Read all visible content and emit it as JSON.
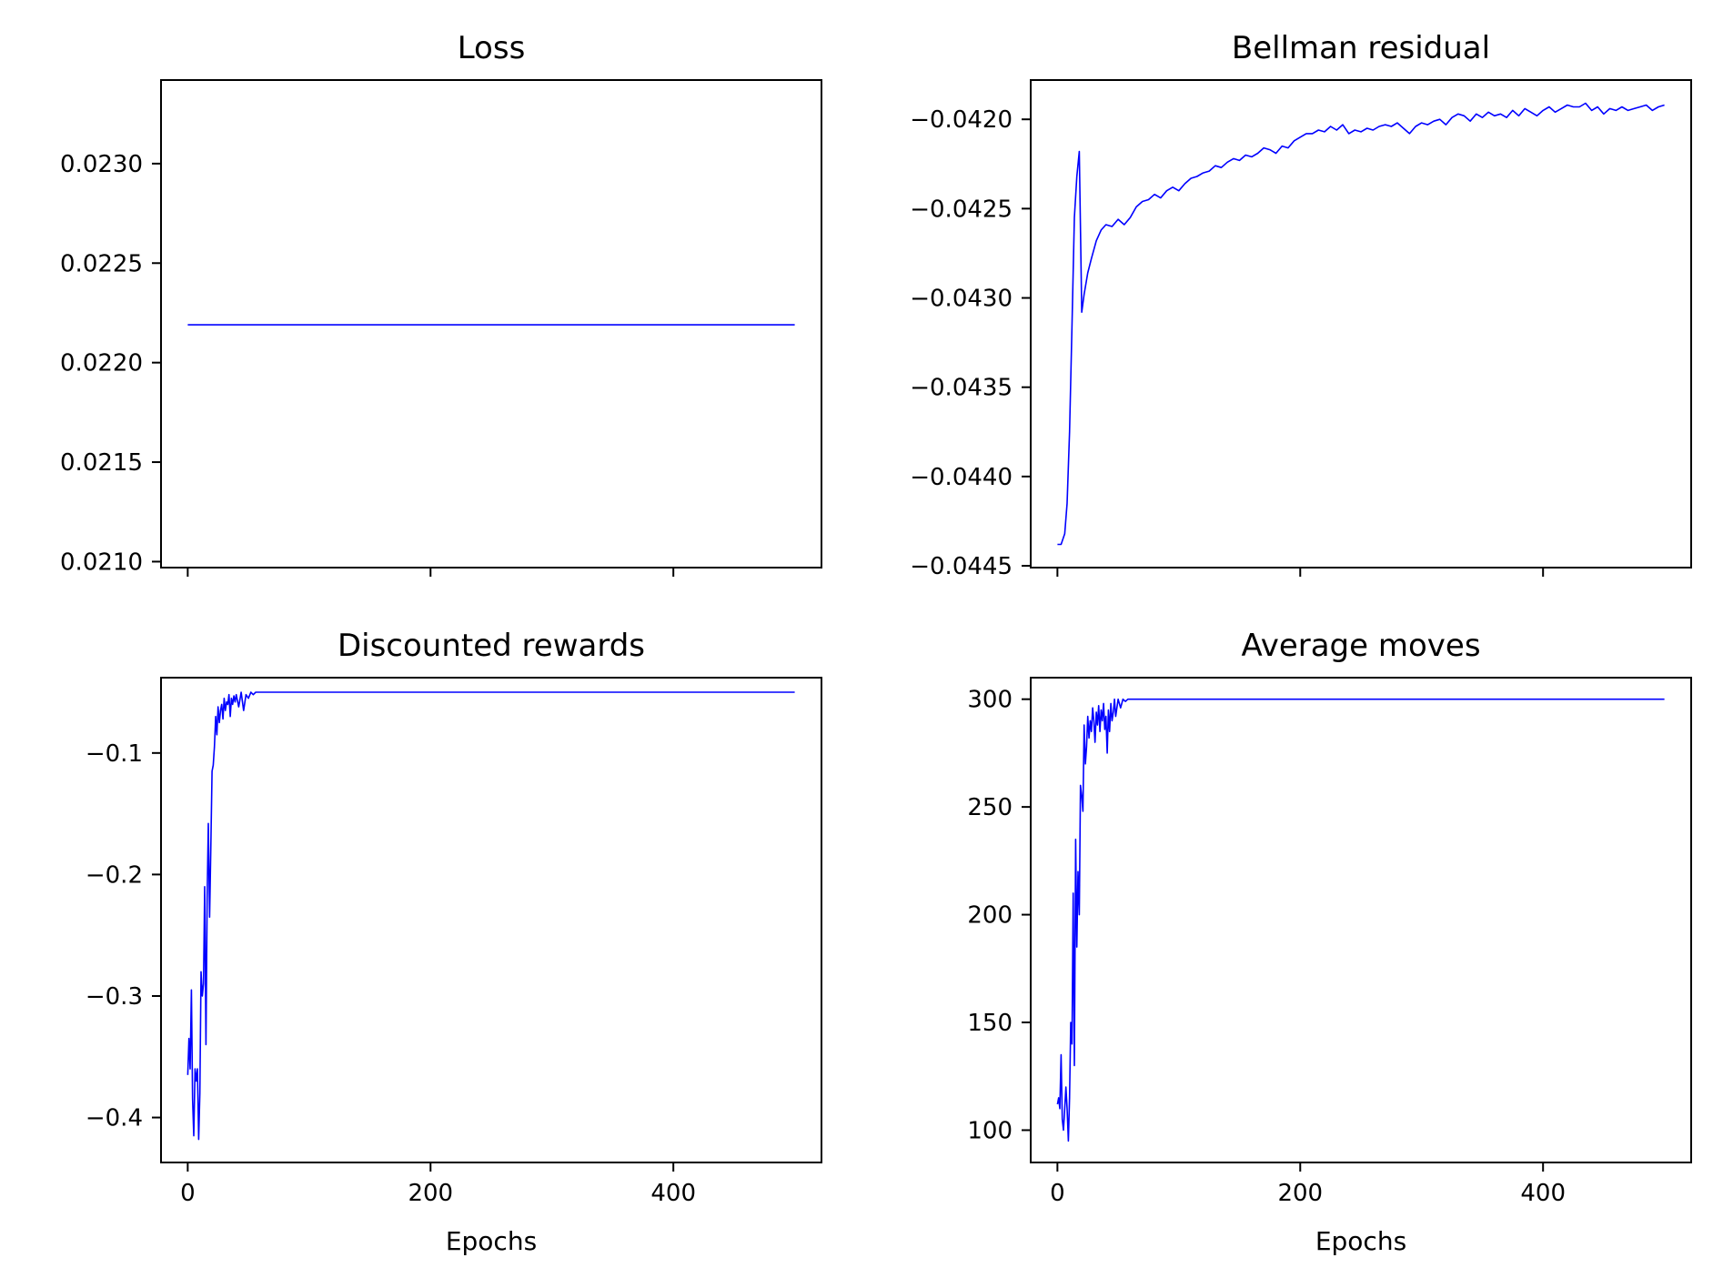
{
  "chart_data": [
    {
      "type": "line",
      "title": "Loss",
      "xlabel": "",
      "ylabel": "",
      "xlim": [
        -22,
        522
      ],
      "ylim": [
        0.02097,
        0.02342
      ],
      "xticks": [
        0,
        200,
        400
      ],
      "xtick_labels": [
        "",
        "",
        ""
      ],
      "yticks": [
        0.021,
        0.0215,
        0.022,
        0.0225,
        0.023
      ],
      "ytick_labels": [
        "0.0210",
        "0.0215",
        "0.0220",
        "0.0225",
        "0.0230"
      ],
      "color": "#0000ff",
      "series": [
        {
          "x": [
            0,
            500
          ],
          "y": [
            0.02219,
            0.02219
          ]
        }
      ]
    },
    {
      "type": "line",
      "title": "Bellman residual",
      "xlabel": "",
      "ylabel": "",
      "xlim": [
        -22,
        522
      ],
      "ylim": [
        -0.04451,
        -0.04178
      ],
      "xticks": [
        0,
        200,
        400
      ],
      "xtick_labels": [
        "",
        "",
        ""
      ],
      "yticks": [
        -0.0445,
        -0.044,
        -0.0435,
        -0.043,
        -0.0425,
        -0.042
      ],
      "ytick_labels": [
        "−0.0445",
        "−0.0440",
        "−0.0435",
        "−0.0430",
        "−0.0425",
        "−0.0420"
      ],
      "color": "#0000ff",
      "series": [
        {
          "x": [
            0,
            3,
            6,
            8,
            10,
            12,
            14,
            16,
            18,
            20,
            22,
            25,
            28,
            32,
            36,
            40,
            45,
            50,
            55,
            60,
            65,
            70,
            75,
            80,
            85,
            90,
            95,
            100,
            105,
            110,
            115,
            120,
            125,
            130,
            135,
            140,
            145,
            150,
            155,
            160,
            165,
            170,
            175,
            180,
            185,
            190,
            195,
            200,
            205,
            210,
            215,
            220,
            225,
            230,
            235,
            240,
            245,
            250,
            255,
            260,
            265,
            270,
            275,
            280,
            285,
            290,
            295,
            300,
            305,
            310,
            315,
            320,
            325,
            330,
            335,
            340,
            345,
            350,
            355,
            360,
            365,
            370,
            375,
            380,
            385,
            390,
            395,
            400,
            405,
            410,
            415,
            420,
            425,
            430,
            435,
            440,
            445,
            450,
            455,
            460,
            465,
            470,
            475,
            480,
            485,
            490,
            495,
            500
          ],
          "y": [
            -0.04438,
            -0.04438,
            -0.04432,
            -0.04415,
            -0.04375,
            -0.04315,
            -0.04255,
            -0.04232,
            -0.04218,
            -0.04308,
            -0.04298,
            -0.04286,
            -0.04278,
            -0.04268,
            -0.04262,
            -0.04259,
            -0.0426,
            -0.04256,
            -0.04259,
            -0.04255,
            -0.04249,
            -0.04246,
            -0.04245,
            -0.04242,
            -0.04244,
            -0.0424,
            -0.04238,
            -0.0424,
            -0.04236,
            -0.04233,
            -0.04232,
            -0.0423,
            -0.04229,
            -0.04226,
            -0.04227,
            -0.04224,
            -0.04222,
            -0.04223,
            -0.0422,
            -0.04221,
            -0.04219,
            -0.04216,
            -0.04217,
            -0.04219,
            -0.04215,
            -0.04216,
            -0.04212,
            -0.0421,
            -0.04208,
            -0.04208,
            -0.04206,
            -0.04207,
            -0.04204,
            -0.04206,
            -0.04203,
            -0.04208,
            -0.04206,
            -0.04207,
            -0.04205,
            -0.04206,
            -0.04204,
            -0.04203,
            -0.04204,
            -0.04202,
            -0.04205,
            -0.04208,
            -0.04204,
            -0.04202,
            -0.04203,
            -0.04201,
            -0.042,
            -0.04203,
            -0.04199,
            -0.04197,
            -0.04198,
            -0.04201,
            -0.04197,
            -0.04199,
            -0.04196,
            -0.04198,
            -0.04197,
            -0.04199,
            -0.04195,
            -0.04198,
            -0.04194,
            -0.04196,
            -0.04198,
            -0.04195,
            -0.04193,
            -0.04196,
            -0.04194,
            -0.04192,
            -0.04193,
            -0.04193,
            -0.04191,
            -0.04195,
            -0.04193,
            -0.04197,
            -0.04194,
            -0.04195,
            -0.04193,
            -0.04195,
            -0.04194,
            -0.04193,
            -0.04192,
            -0.04195,
            -0.04193,
            -0.04192
          ],
          "fix": {}
        }
      ]
    },
    {
      "type": "line",
      "title": "Discounted rewards",
      "xlabel": "Epochs",
      "ylabel": "",
      "xlim": [
        -22,
        522
      ],
      "ylim": [
        -0.437,
        -0.038
      ],
      "xticks": [
        0,
        200,
        400
      ],
      "xtick_labels": [
        "0",
        "200",
        "400"
      ],
      "yticks": [
        -0.4,
        -0.3,
        -0.2,
        -0.1
      ],
      "ytick_labels": [
        "−0.4",
        "−0.3",
        "−0.2",
        "−0.1"
      ],
      "color": "#0000ff",
      "series": [
        {
          "x": [
            0,
            1,
            2,
            3,
            4,
            5,
            6,
            7,
            8,
            9,
            10,
            11,
            12,
            13,
            14,
            15,
            16,
            17,
            18,
            19,
            20,
            21,
            22,
            23,
            24,
            25,
            26,
            27,
            28,
            29,
            30,
            31,
            32,
            33,
            34,
            35,
            36,
            37,
            38,
            39,
            40,
            42,
            44,
            46,
            48,
            50,
            52,
            54,
            56,
            58,
            60,
            500
          ],
          "y": [
            -0.365,
            -0.335,
            -0.36,
            -0.295,
            -0.385,
            -0.415,
            -0.36,
            -0.37,
            -0.36,
            -0.418,
            -0.38,
            -0.28,
            -0.3,
            -0.29,
            -0.21,
            -0.34,
            -0.22,
            -0.158,
            -0.235,
            -0.18,
            -0.115,
            -0.11,
            -0.095,
            -0.07,
            -0.085,
            -0.062,
            -0.075,
            -0.065,
            -0.06,
            -0.072,
            -0.055,
            -0.065,
            -0.058,
            -0.06,
            -0.052,
            -0.07,
            -0.055,
            -0.06,
            -0.053,
            -0.058,
            -0.052,
            -0.062,
            -0.05,
            -0.065,
            -0.052,
            -0.055,
            -0.05,
            -0.052,
            -0.05,
            -0.05,
            -0.05,
            -0.05
          ]
        }
      ]
    },
    {
      "type": "line",
      "title": "Average moves",
      "xlabel": "Epochs",
      "ylabel": "",
      "xlim": [
        -22,
        522
      ],
      "ylim": [
        85,
        310
      ],
      "xticks": [
        0,
        200,
        400
      ],
      "xtick_labels": [
        "0",
        "200",
        "400"
      ],
      "yticks": [
        100,
        150,
        200,
        250,
        300
      ],
      "ytick_labels": [
        "100",
        "150",
        "200",
        "250",
        "300"
      ],
      "color": "#0000ff",
      "series": [
        {
          "x": [
            0,
            1,
            2,
            3,
            4,
            5,
            6,
            7,
            8,
            9,
            10,
            11,
            12,
            13,
            14,
            15,
            16,
            17,
            18,
            19,
            20,
            21,
            22,
            23,
            24,
            25,
            26,
            27,
            28,
            29,
            30,
            31,
            32,
            33,
            34,
            35,
            36,
            37,
            38,
            39,
            40,
            41,
            42,
            43,
            44,
            45,
            46,
            47,
            48,
            50,
            52,
            54,
            56,
            58,
            60,
            500
          ],
          "y": [
            112,
            115,
            110,
            135,
            105,
            100,
            110,
            120,
            110,
            95,
            115,
            150,
            140,
            210,
            130,
            235,
            185,
            220,
            200,
            260,
            255,
            248,
            288,
            270,
            278,
            292,
            282,
            290,
            285,
            296,
            290,
            280,
            294,
            288,
            297,
            285,
            295,
            290,
            298,
            286,
            292,
            275,
            295,
            285,
            298,
            290,
            294,
            300,
            292,
            300,
            296,
            300,
            299,
            300,
            300,
            300
          ]
        }
      ]
    }
  ]
}
